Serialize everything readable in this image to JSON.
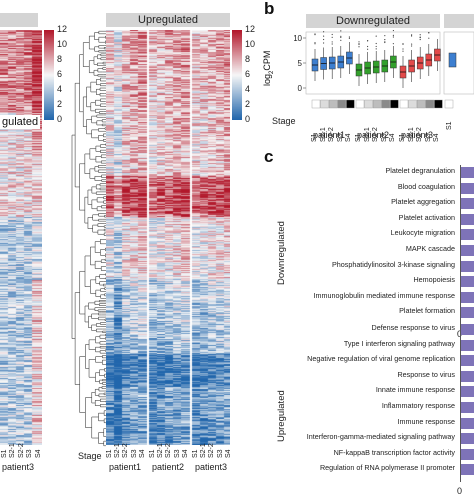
{
  "panel_b_letter": "b",
  "panel_c_letter": "c",
  "heatmap_left": {
    "strip_label": "",
    "partial_label": "gulated",
    "colorbar_ticks": [
      "12",
      "10",
      "8",
      "6",
      "4",
      "2",
      "0"
    ],
    "columns": [
      "S1",
      "S2-1",
      "S2-2",
      "S3",
      "S4"
    ],
    "patient_label": "patient3"
  },
  "heatmap_right": {
    "strip_label": "Upregulated",
    "colorbar_ticks": [
      "12",
      "10",
      "8",
      "6",
      "4",
      "2",
      "0"
    ],
    "stage_label": "Stage",
    "patients": [
      {
        "name": "patient1",
        "columns": [
          "S1",
          "S2-1",
          "S2-2",
          "S3",
          "S4"
        ]
      },
      {
        "name": "patient2",
        "columns": [
          "S1",
          "S2-1",
          "S2-2",
          "S3",
          "S4"
        ]
      },
      {
        "name": "patient3",
        "columns": [
          "S1",
          "S2-1",
          "S2-2",
          "S3",
          "S4"
        ]
      }
    ]
  },
  "boxplot": {
    "strip_label": "Downregulated",
    "ylabel": "log2CPM",
    "ylabel_main": "log",
    "ylabel_sub": "2",
    "ylabel_tail": "CPM",
    "y_ticks": [
      "10",
      "5",
      "0"
    ],
    "stage_label": "Stage",
    "patients": [
      {
        "name": "patient1",
        "columns": [
          "S1",
          "S2-1",
          "S2-2",
          "S3",
          "S4"
        ],
        "color": "#3d7fd0"
      },
      {
        "name": "patient2",
        "columns": [
          "S1",
          "S2-1",
          "S2-2",
          "S3",
          "S4"
        ],
        "color": "#33a02c"
      },
      {
        "name": "patient3",
        "columns": [
          "S1",
          "S2-1",
          "S2-2",
          "S3",
          "S4"
        ],
        "color": "#e34a4a"
      }
    ],
    "extra_column": "S1"
  },
  "enrichment": {
    "groups": [
      {
        "name": "Downregulated",
        "terms": [
          "Platelet degranulation",
          "Blood coagulation",
          "Platelet aggregation",
          "Platelet activation",
          "Leukocyte migration",
          "MAPK cascade",
          "Phosphatidylinositol 3-kinase signaling",
          "Hemopoiesis",
          "Immunoglobulin mediated immune response",
          "Platelet formation"
        ],
        "axis_zero": "0"
      },
      {
        "name": "Upregulated",
        "terms": [
          "Defense response to virus",
          "Type I interferon signaling pathway",
          "Negative regulation of viral genome replication",
          "Response to virus",
          "Innate immune response",
          "Inflammatory response",
          "Immune response",
          "Interferon-gamma-mediated signaling pathway",
          "NF-kappaB transcription factor activity",
          "Regulation of RNA polymerase II promoter"
        ],
        "axis_zero": "0"
      }
    ]
  },
  "colors": {
    "heat_high": "#b2182b",
    "heat_mid": "#f7f7f7",
    "heat_low": "#2166ac",
    "strip": "#d4d4d4",
    "bar": "#7e73b8"
  }
}
